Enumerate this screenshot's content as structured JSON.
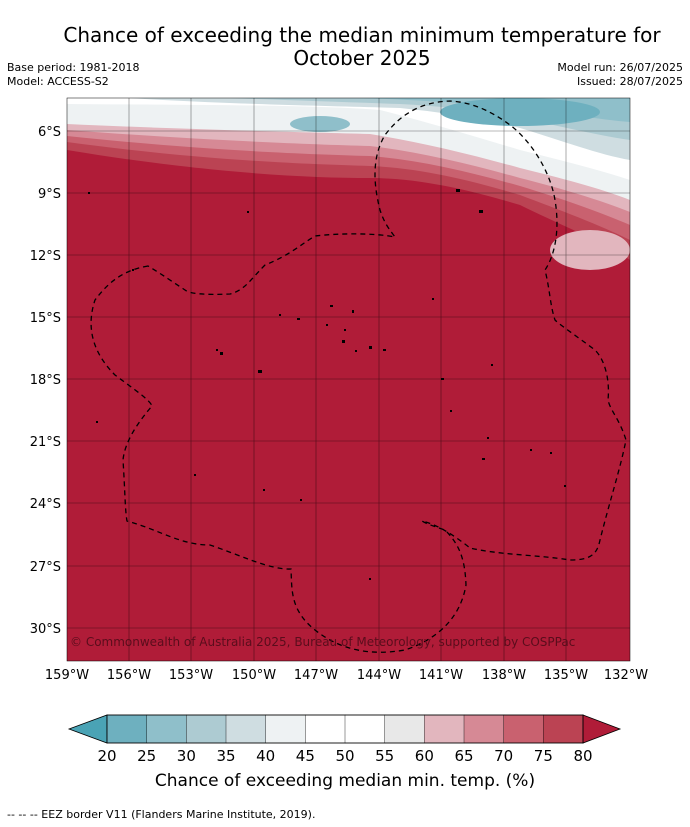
{
  "title": {
    "line1": "Chance of exceeding the median minimum temperature for",
    "line2": "October 2025"
  },
  "meta": {
    "base_period": "Base period: 1981-2018",
    "model": "Model: ACCESS-S2",
    "model_run": "Model run: 26/07/2025",
    "issued": "Issued: 28/07/2025"
  },
  "map": {
    "lat_labels": [
      "6°S",
      "9°S",
      "12°S",
      "15°S",
      "18°S",
      "21°S",
      "24°S",
      "27°S",
      "30°S"
    ],
    "lon_labels": [
      "159°W",
      "156°W",
      "153°W",
      "150°W",
      "147°W",
      "144°W",
      "141°W",
      "138°W",
      "135°W",
      "132°W"
    ],
    "copyright": "© Commonwealth of Australia 2025, Bureau of Meteorology, supported by COSPPac",
    "dominant_color": "#b01c38"
  },
  "legend": {
    "ticks": [
      "20",
      "25",
      "30",
      "35",
      "40",
      "45",
      "50",
      "55",
      "60",
      "65",
      "70",
      "75",
      "80"
    ],
    "colors": [
      "#4aa3b5",
      "#6eb0bf",
      "#8fbfca",
      "#adcbd2",
      "#cfdde1",
      "#eef2f3",
      "#ffffff",
      "#ffffff",
      "#e8e8e8",
      "#e2b6be",
      "#d68995",
      "#c9616f",
      "#bb4353",
      "#b01c38"
    ],
    "label": "Chance of exceeding median min. temp. (%)"
  },
  "footnote": "--  --  -- EEZ border V11 (Flanders Marine Institute, 2019)."
}
